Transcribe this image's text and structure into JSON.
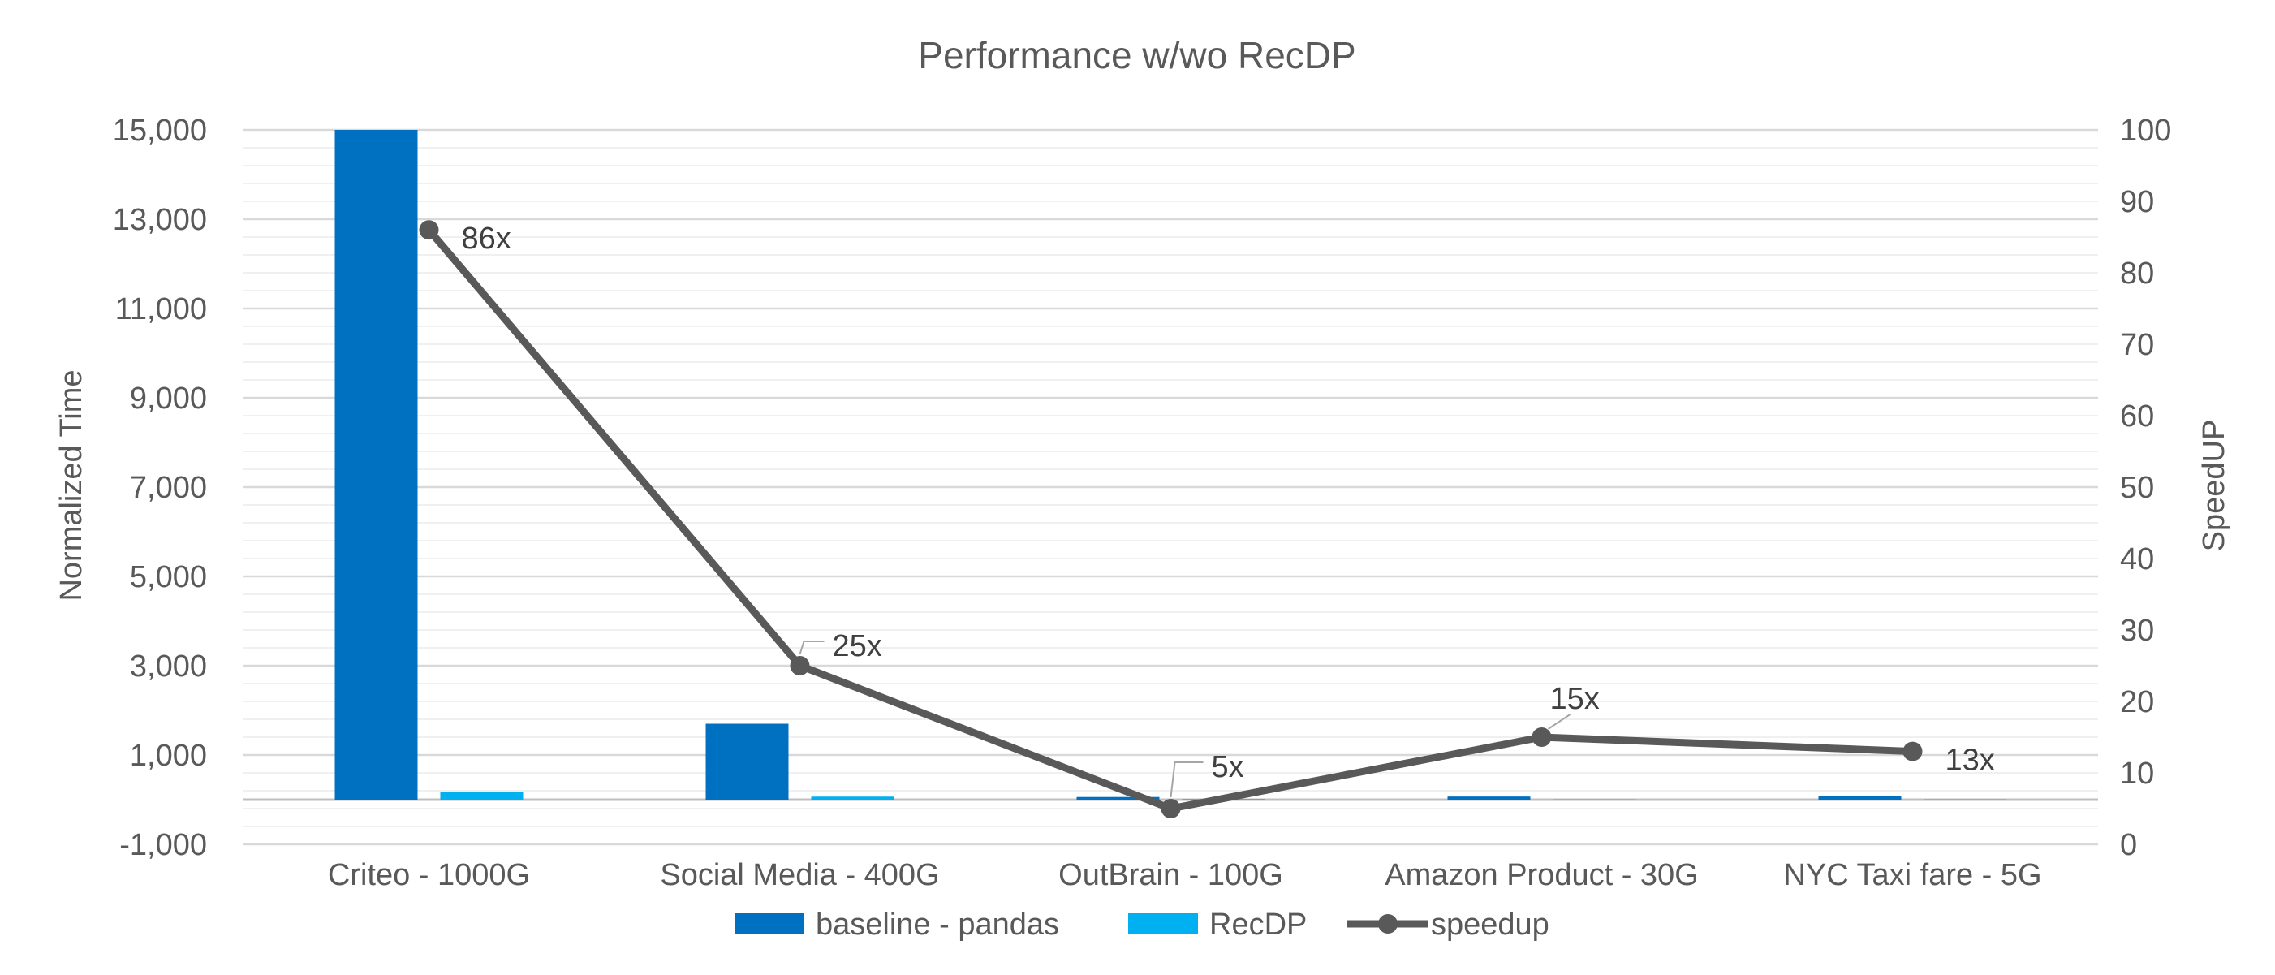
{
  "chart_data": {
    "type": "bar",
    "title": "Performance w/wo RecDP",
    "categories": [
      "Criteo - 1000G",
      "Social Media - 400G",
      "OutBrain - 100G",
      "Amazon Product - 30G",
      "NYC Taxi fare - 5G"
    ],
    "series": [
      {
        "name": "baseline - pandas",
        "type": "bar",
        "axis": "left",
        "color": "#0070C0",
        "values": [
          15000,
          1700,
          60,
          70,
          80
        ]
      },
      {
        "name": "RecDP",
        "type": "bar",
        "axis": "left",
        "color": "#00B0F0",
        "values": [
          175,
          68,
          12,
          5,
          6
        ]
      },
      {
        "name": "speedup",
        "type": "line",
        "axis": "right",
        "color": "#595959",
        "values": [
          86,
          25,
          5,
          15,
          13
        ],
        "labels": [
          "86x",
          "25x",
          "5x",
          "15x",
          "13x"
        ]
      }
    ],
    "ylabel": "Normalized Time",
    "y2label": "SpeedUP",
    "ylim": [
      -1000,
      15000
    ],
    "y_ticks": [
      "-1,000",
      "1,000",
      "3,000",
      "5,000",
      "7,000",
      "9,000",
      "11,000",
      "13,000",
      "15,000"
    ],
    "y_tick_values": [
      -1000,
      1000,
      3000,
      5000,
      7000,
      9000,
      11000,
      13000,
      15000
    ],
    "y2lim": [
      0,
      100
    ],
    "y2_ticks": [
      "0",
      "10",
      "20",
      "30",
      "40",
      "50",
      "60",
      "70",
      "80",
      "90",
      "100"
    ],
    "y2_tick_values": [
      0,
      10,
      20,
      30,
      40,
      50,
      60,
      70,
      80,
      90,
      100
    ],
    "grid": true,
    "legend_position": "bottom"
  }
}
